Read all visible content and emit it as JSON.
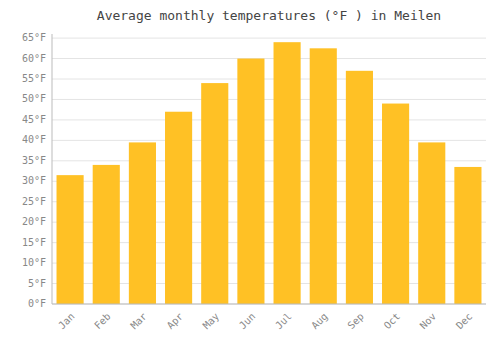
{
  "chart_data": {
    "type": "bar",
    "title": "Average monthly temperatures (°F ) in Meilen",
    "categories": [
      "Jan",
      "Feb",
      "Mar",
      "Apr",
      "May",
      "Jun",
      "Jul",
      "Aug",
      "Sep",
      "Oct",
      "Nov",
      "Dec"
    ],
    "values": [
      31.5,
      34.0,
      39.5,
      47.0,
      54.0,
      60.0,
      64.0,
      62.5,
      57.0,
      49.0,
      39.5,
      33.5
    ],
    "color": "#FFC125",
    "ylim": [
      0,
      66
    ],
    "yticks": [
      {
        "value": 0,
        "label": "0°F"
      },
      {
        "value": 5,
        "label": "5°F"
      },
      {
        "value": 10,
        "label": "10°F"
      },
      {
        "value": 15,
        "label": "15°F"
      },
      {
        "value": 20,
        "label": "20°F"
      },
      {
        "value": 25,
        "label": "25°F"
      },
      {
        "value": 30,
        "label": "30°F"
      },
      {
        "value": 35,
        "label": "35°F"
      },
      {
        "value": 40,
        "label": "40°F"
      },
      {
        "value": 45,
        "label": "45°F"
      },
      {
        "value": 50,
        "label": "50°F"
      },
      {
        "value": 55,
        "label": "55°F"
      },
      {
        "value": 60,
        "label": "60°F"
      },
      {
        "value": 65,
        "label": "65°F"
      }
    ],
    "grid": true
  }
}
